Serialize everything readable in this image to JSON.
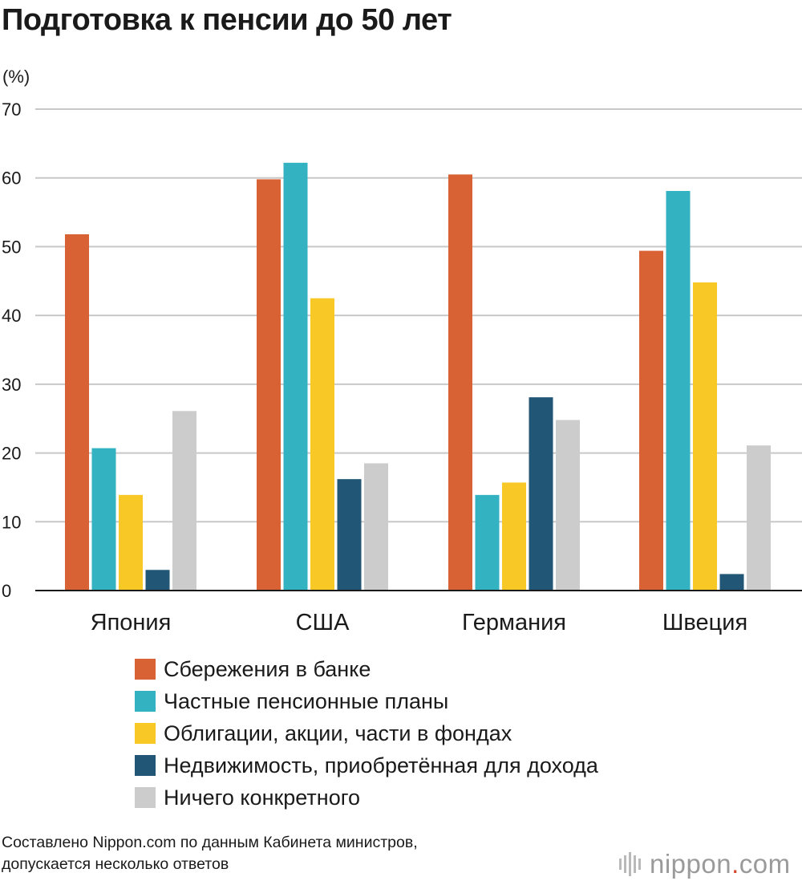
{
  "title": "Подготовка к пенсии до 50 лет",
  "unit_label": "(%)",
  "colors": {
    "bank": "#d96234",
    "private": "#33b2c1",
    "bonds": "#f7c826",
    "realty": "#215676",
    "nothing": "#cccccc",
    "grid": "#c8c8c8",
    "axis": "#1a1a1a"
  },
  "chart_data": {
    "type": "bar",
    "categories": [
      "Япония",
      "США",
      "Германия",
      "Швеция"
    ],
    "series": [
      {
        "name": "Сбережения в банке",
        "color": "#d96234",
        "values": [
          51.8,
          59.8,
          60.5,
          49.4
        ]
      },
      {
        "name": "Частные пенсионные планы",
        "color": "#33b2c1",
        "values": [
          20.7,
          62.2,
          13.9,
          58.1
        ]
      },
      {
        "name": "Облигации, акции, части в фондах",
        "color": "#f7c826",
        "values": [
          13.9,
          42.5,
          15.7,
          44.8
        ]
      },
      {
        "name": "Недвижимость, приобретённая для дохода",
        "color": "#215676",
        "values": [
          3.0,
          16.2,
          28.1,
          2.4
        ]
      },
      {
        "name": "Ничего конкретного",
        "color": "#cccccc",
        "values": [
          26.1,
          18.5,
          24.8,
          21.1
        ]
      }
    ],
    "yticks": [
      "0",
      "10",
      "20",
      "30",
      "40",
      "50",
      "60",
      "70"
    ],
    "ylim": [
      0,
      70
    ],
    "ylabel": "(%)",
    "grid": true,
    "legend_position": "bottom"
  },
  "legend": [
    {
      "label": "Сбережения в банке",
      "color": "#d96234"
    },
    {
      "label": "Частные пенсионные планы",
      "color": "#33b2c1"
    },
    {
      "label": "Облигации, акции, части в фондах",
      "color": "#f7c826"
    },
    {
      "label": "Недвижимость, приобретённая для дохода",
      "color": "#215676"
    },
    {
      "label": "Ничего конкретного",
      "color": "#cccccc"
    }
  ],
  "source": {
    "line1": "Составлено Nippon.com по данным Кабинета министров,",
    "line2": "допускается несколько ответов"
  },
  "logo": {
    "name": "nippon",
    "dot": ".",
    "suffix": "com"
  }
}
